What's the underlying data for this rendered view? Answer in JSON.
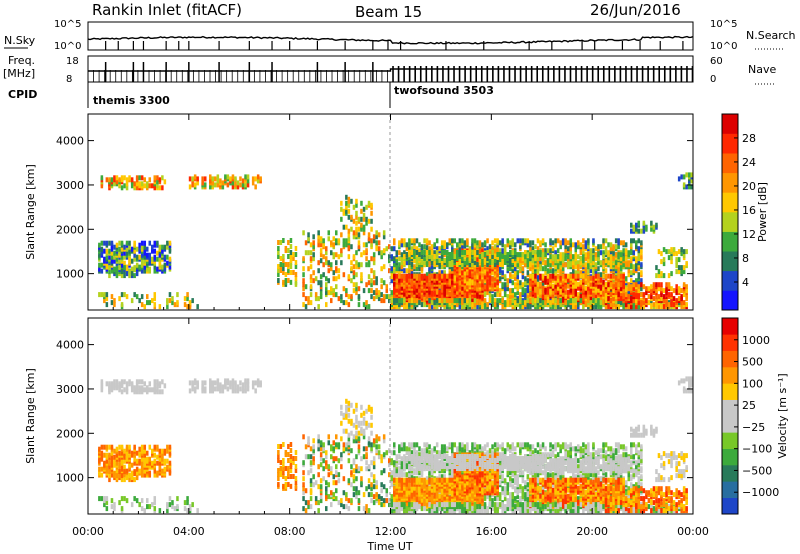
{
  "header": {
    "title": "Rankin Inlet (fitACF)",
    "beam": "Beam 15",
    "date": "26/Jun/2016"
  },
  "chart_data": [
    {
      "type": "line",
      "name": "noise-panel",
      "left_label": "N.Sky",
      "right_label": "N.Search",
      "left_ticks": [
        "10^5",
        "10^0"
      ],
      "right_ticks": [
        "10^5",
        "10^0"
      ]
    },
    {
      "type": "line",
      "name": "frequency-panel",
      "left_label": "Freq.",
      "left_unit": "[MHz]",
      "left_ticks": [
        "18",
        "8"
      ],
      "right_label": "Nave",
      "right_ticks": [
        "60",
        "0"
      ]
    },
    {
      "type": "table",
      "name": "cpid-panel",
      "label": "CPID",
      "segments": [
        {
          "name": "themis 3300",
          "start_hour": 0,
          "end_hour": 12
        },
        {
          "name": "twofsound 3503",
          "start_hour": 12,
          "end_hour": 24
        }
      ]
    },
    {
      "type": "heatmap",
      "name": "power-panel",
      "ylabel": "Slant Range [km]",
      "ylim": [
        180,
        4600
      ],
      "yticks": [
        1000,
        2000,
        3000,
        4000
      ],
      "colorbar": {
        "label": "Power [dB]",
        "ticks": [
          "4",
          "8",
          "12",
          "16",
          "20",
          "24",
          "28"
        ],
        "colors": [
          "#1414ff",
          "#1e46c8",
          "#287a5a",
          "#3caa3c",
          "#b4d21e",
          "#ffc800",
          "#ff9600",
          "#ff6400",
          "#ff2800",
          "#dc0000"
        ]
      }
    },
    {
      "type": "heatmap",
      "name": "velocity-panel",
      "ylabel": "Slant Range [km]",
      "ylim": [
        180,
        4600
      ],
      "yticks": [
        1000,
        2000,
        3000,
        4000
      ],
      "colorbar": {
        "label": "Velocity [m s⁻¹]",
        "ticks": [
          "1000",
          "500",
          "100",
          "25",
          "−25",
          "−100",
          "−500",
          "−1000"
        ],
        "colors": [
          "#1e46c8",
          "#286ea0",
          "#287a5a",
          "#3caa3c",
          "#78c828",
          "#c8c8c8",
          "#c8c8c8",
          "#ffc800",
          "#ff9600",
          "#ff6400",
          "#ff3200",
          "#e60000"
        ]
      }
    }
  ],
  "xaxis": {
    "label": "Time UT",
    "ticks": [
      "00:00",
      "04:00",
      "08:00",
      "12:00",
      "16:00",
      "20:00",
      "00:00"
    ],
    "range_hours": [
      0,
      24
    ]
  },
  "patches": [
    {
      "t0": 0.5,
      "t1": 3.1,
      "r0": 2880,
      "r1": 3120,
      "density": 0.55,
      "power": [
        3,
        8
      ],
      "vel": [
        5,
        6
      ]
    },
    {
      "t0": 4.0,
      "t1": 6.8,
      "r0": 2900,
      "r1": 3150,
      "density": 0.45,
      "power": [
        3,
        8
      ],
      "vel": [
        5,
        6
      ]
    },
    {
      "t0": 0.4,
      "t1": 3.3,
      "r0": 1000,
      "r1": 1650,
      "density": 0.55,
      "power": [
        0,
        5
      ],
      "vel": [
        7,
        9
      ]
    },
    {
      "t0": 0.8,
      "t1": 2.0,
      "r0": 900,
      "r1": 1100,
      "density": 0.4,
      "power": [
        1,
        4
      ],
      "vel": [
        7,
        9
      ]
    },
    {
      "t0": 0.2,
      "t1": 4.5,
      "r0": 200,
      "r1": 500,
      "density": 0.15,
      "power": [
        2,
        6
      ],
      "vel": [
        3,
        6
      ]
    },
    {
      "t0": 7.5,
      "t1": 8.2,
      "r0": 700,
      "r1": 1700,
      "density": 0.35,
      "power": [
        2,
        6
      ],
      "vel": [
        7,
        9
      ]
    },
    {
      "t0": 8.5,
      "t1": 11.9,
      "r0": 200,
      "r1": 1900,
      "density": 0.2,
      "power": [
        2,
        7
      ],
      "vel": [
        2,
        9
      ]
    },
    {
      "t0": 10.0,
      "t1": 11.2,
      "r0": 1900,
      "r1": 2700,
      "density": 0.2,
      "power": [
        2,
        6
      ],
      "vel": [
        5,
        7
      ]
    },
    {
      "t0": 12.0,
      "t1": 22.0,
      "r0": 200,
      "r1": 1700,
      "density": 0.45,
      "power": [
        1,
        6
      ],
      "vel": [
        3,
        6
      ]
    },
    {
      "t0": 12.1,
      "t1": 15.6,
      "r0": 300,
      "r1": 900,
      "density": 0.85,
      "power": [
        6,
        9
      ],
      "vel": [
        7,
        9
      ]
    },
    {
      "t0": 14.5,
      "t1": 16.2,
      "r0": 600,
      "r1": 1500,
      "density": 0.75,
      "power": [
        5,
        8
      ],
      "vel": [
        7,
        10
      ]
    },
    {
      "t0": 17.5,
      "t1": 21.3,
      "r0": 300,
      "r1": 900,
      "density": 0.75,
      "power": [
        5,
        9
      ],
      "vel": [
        7,
        10
      ]
    },
    {
      "t0": 12.5,
      "t1": 18.0,
      "r0": 1150,
      "r1": 1450,
      "density": 0.55,
      "power": [
        2,
        5
      ],
      "vel": [
        5,
        6
      ]
    },
    {
      "t0": 17.0,
      "t1": 21.5,
      "r0": 1100,
      "r1": 1400,
      "density": 0.5,
      "power": [
        3,
        6
      ],
      "vel": [
        5,
        6
      ]
    },
    {
      "t0": 12.0,
      "t1": 23.5,
      "r0": 200,
      "r1": 380,
      "density": 0.6,
      "power": [
        2,
        6
      ],
      "vel": [
        3,
        6
      ]
    },
    {
      "t0": 20.5,
      "t1": 23.8,
      "r0": 200,
      "r1": 700,
      "density": 0.55,
      "power": [
        5,
        9
      ],
      "vel": [
        7,
        10
      ]
    },
    {
      "t0": 21.5,
      "t1": 22.6,
      "r0": 1900,
      "r1": 2100,
      "density": 0.5,
      "power": [
        1,
        4
      ],
      "vel": [
        5,
        6
      ]
    },
    {
      "t0": 22.5,
      "t1": 23.8,
      "r0": 900,
      "r1": 1500,
      "density": 0.3,
      "power": [
        2,
        5
      ],
      "vel": [
        5,
        7
      ]
    },
    {
      "t0": 23.4,
      "t1": 24.0,
      "r0": 2900,
      "r1": 3200,
      "density": 0.3,
      "power": [
        1,
        4
      ],
      "vel": [
        5,
        6
      ]
    }
  ]
}
